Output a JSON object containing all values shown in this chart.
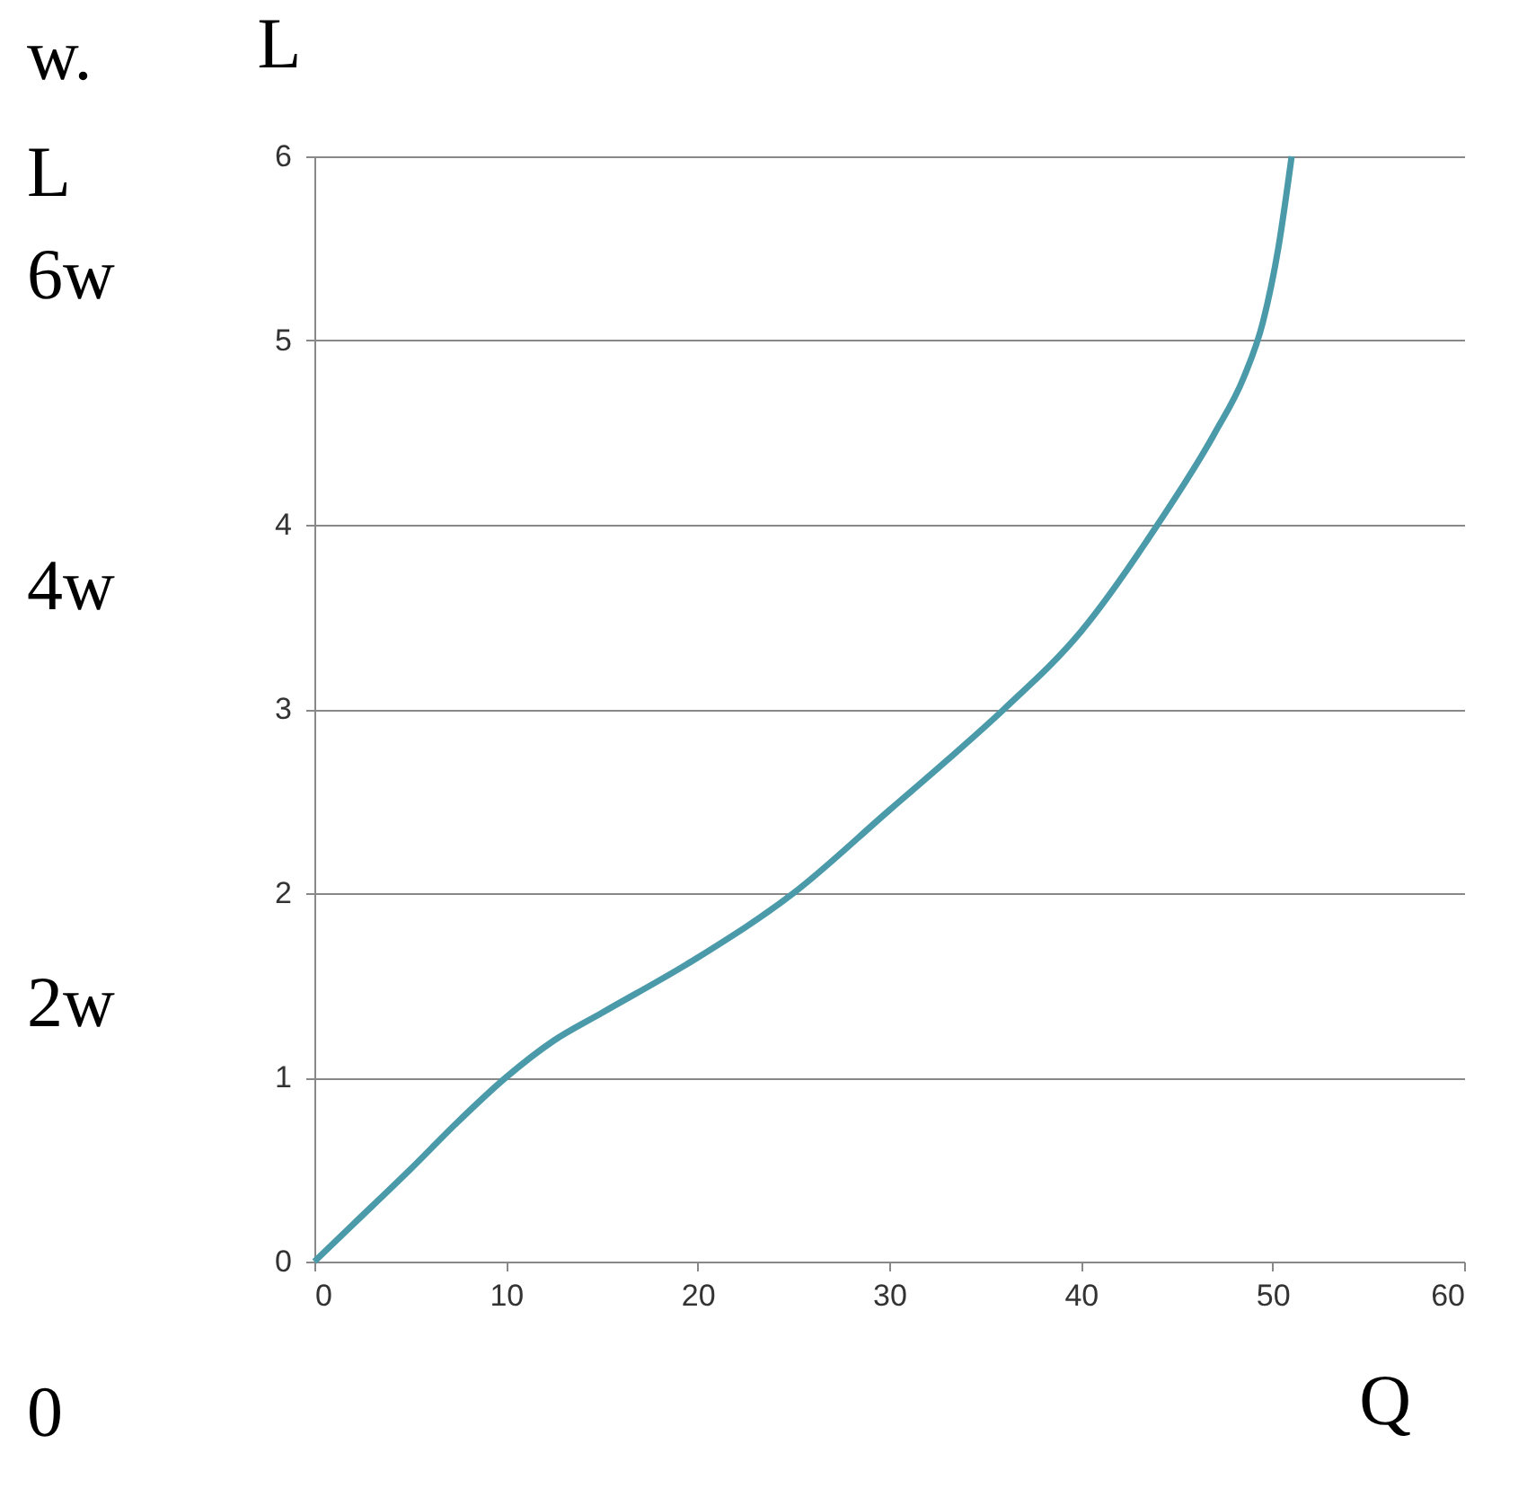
{
  "chart_data": {
    "type": "line",
    "xlabel": "Q",
    "ylabel": "L",
    "annotations": [
      "w.",
      "L",
      "6w",
      "4w",
      "2w",
      "0"
    ],
    "x": [
      0,
      2,
      5,
      7.5,
      10,
      12.5,
      15,
      20,
      25,
      30,
      33,
      36,
      40,
      44,
      47,
      48.5,
      49.5,
      50.3,
      51
    ],
    "series": [
      {
        "color": "#4a9aaa",
        "values": [
          0,
          0.2,
          0.5,
          0.76,
          1,
          1.2,
          1.35,
          1.65,
          2,
          2.45,
          2.72,
          3,
          3.42,
          4,
          4.5,
          4.8,
          5.1,
          5.5,
          6
        ]
      }
    ],
    "xlim": [
      0,
      60
    ],
    "xticks": [
      0,
      10,
      20,
      30,
      40,
      50,
      60
    ],
    "ylim": [
      0,
      6
    ],
    "yticks": [
      0,
      1,
      2,
      3,
      4,
      5,
      6
    ],
    "grid": "y",
    "legend": false,
    "marker": "none",
    "line_style": "solid"
  }
}
